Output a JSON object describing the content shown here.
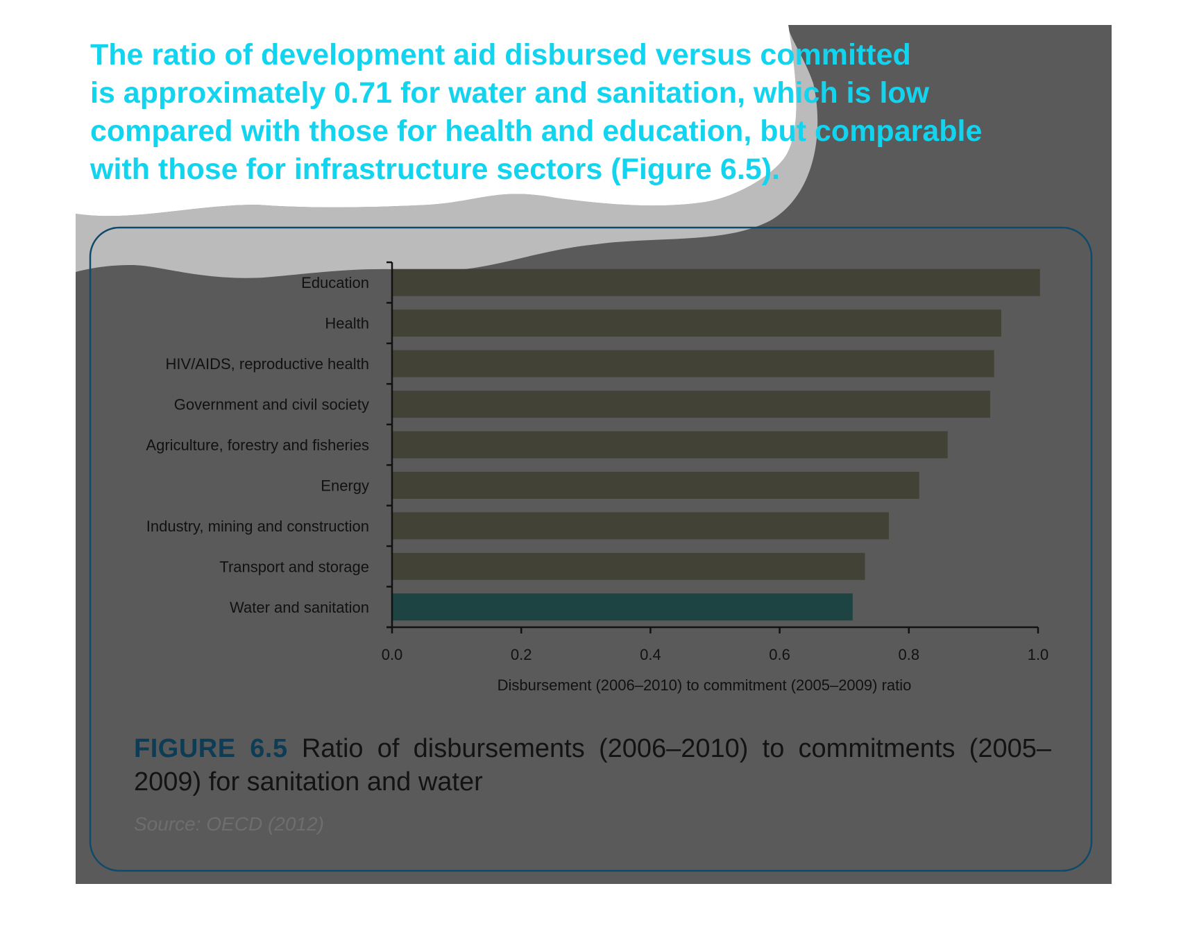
{
  "headline": {
    "lines": [
      "The ratio of development aid disbursed versus committed",
      "is approximately 0.71 for water and sanitation, which is low",
      "compared with those for health and education, but comparable",
      "with those for infrastructure sectors (Figure 6.5)."
    ]
  },
  "figure": {
    "label": "FIGURE 6.5",
    "caption": "Ratio of disbursements (2006–2010) to commitments (2005–2009) for sanitation and water",
    "source": "Source: OECD (2012)"
  },
  "colors": {
    "headline": "#13d4ef",
    "figure_label": "#0e3c55",
    "bar": "#434237",
    "highlight_bar": "#1d4443",
    "background": "#5a5a5a",
    "frame": "#0f4a6a"
  },
  "chart_data": {
    "type": "bar",
    "orientation": "horizontal",
    "categories": [
      "Education",
      "Health",
      "HIV/AIDS, reproductive health",
      "Government and civil society",
      "Agriculture, forestry and fisheries",
      "Energy",
      "Industry, mining and construction",
      "Transport and storage",
      "Water and sanitation"
    ],
    "values": [
      1.003,
      0.943,
      0.932,
      0.926,
      0.86,
      0.816,
      0.769,
      0.732,
      0.713
    ],
    "highlight": "Water and sanitation",
    "xlabel": "Disbursement (2006–2010) to commitment (2005–2009) ratio",
    "ylabel": "",
    "xlim": [
      0,
      1.0
    ],
    "xticks": [
      "0.0",
      "0.2",
      "0.4",
      "0.6",
      "0.8",
      "1.0"
    ],
    "grid": false,
    "legend": "none"
  }
}
